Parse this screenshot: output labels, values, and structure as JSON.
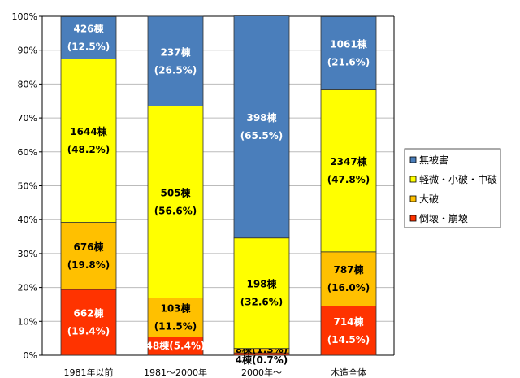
{
  "chart_data": {
    "type": "bar",
    "stacked": true,
    "title": "",
    "xlabel": "",
    "ylabel": "",
    "ylim": [
      0,
      100
    ],
    "yticks": [
      "0%",
      "10%",
      "20%",
      "30%",
      "40%",
      "50%",
      "60%",
      "70%",
      "80%",
      "90%",
      "100%"
    ],
    "grid": true,
    "legend_position": "right",
    "categories": [
      "1981年以前",
      "1981～2000年",
      "2000年～",
      "木造全体"
    ],
    "series": [
      {
        "name": "倒壊・崩壊",
        "color": "#ff3300",
        "text_color": "#ffffff",
        "values": [
          19.4,
          5.4,
          0.7,
          14.5
        ],
        "labels": [
          "662棟\n(19.4%)",
          "48棟(5.4%)",
          "4棟(0.7%)",
          "714棟\n(14.5%)"
        ]
      },
      {
        "name": "大破",
        "color": "#ffc000",
        "text_color": "#000000",
        "values": [
          19.8,
          11.5,
          1.3,
          16.0
        ],
        "labels": [
          "676棟\n(19.8%)",
          "103棟\n(11.5%)",
          "8棟(1.3%)",
          "787棟\n(16.0%)"
        ]
      },
      {
        "name": "軽微・小破・中破",
        "color": "#ffff00",
        "text_color": "#000000",
        "values": [
          48.2,
          56.6,
          32.6,
          47.8
        ],
        "labels": [
          "1644棟\n(48.2%)",
          "505棟\n(56.6%)",
          "198棟\n(32.6%)",
          "2347棟\n(47.8%)"
        ]
      },
      {
        "name": "無被害",
        "color": "#4a7ebb",
        "text_color": "#ffffff",
        "values": [
          12.5,
          26.5,
          65.5,
          21.6
        ],
        "labels": [
          "426棟\n(12.5%)",
          "237棟\n(26.5%)",
          "398棟\n(65.5%)",
          "1061棟\n(21.6%)"
        ]
      }
    ]
  }
}
